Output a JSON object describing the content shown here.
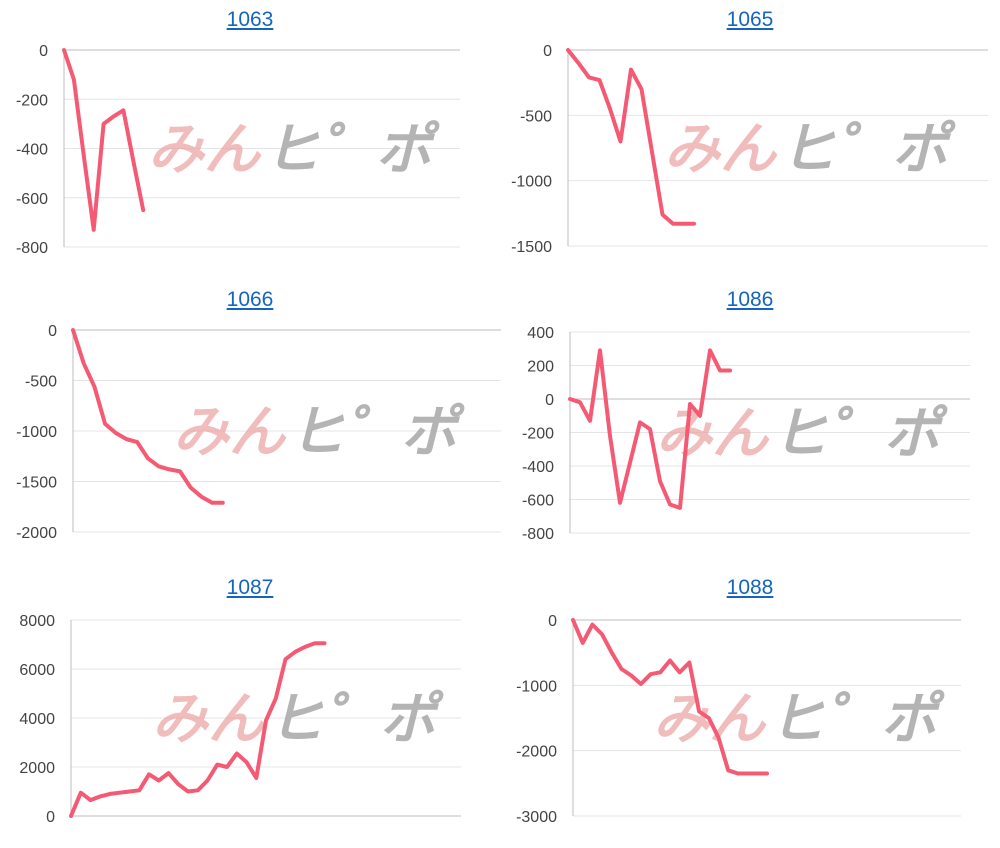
{
  "watermark": {
    "part1": "みん",
    "part2": "ヒ゜ポ"
  },
  "colors": {
    "series": "#f45a74",
    "axis": "#bdbdbd",
    "grid": "#e4e4e4",
    "title": "#1565c0"
  },
  "chart_data": [
    {
      "type": "line",
      "title": "1063",
      "ylim": [
        -800,
        0
      ],
      "yticks": [
        0,
        -200,
        -400,
        -600,
        -800
      ],
      "xlim": [
        0,
        40
      ],
      "grid": true,
      "x": [
        0,
        1,
        2,
        3,
        4,
        5,
        6,
        7,
        8
      ],
      "values": [
        0,
        -120,
        -430,
        -730,
        -300,
        -270,
        -245,
        -450,
        -650
      ]
    },
    {
      "type": "line",
      "title": "1065",
      "ylim": [
        -1500,
        0
      ],
      "yticks": [
        0,
        -500,
        -1000,
        -1500
      ],
      "xlim": [
        0,
        40
      ],
      "grid": true,
      "x": [
        0,
        1,
        2,
        3,
        4,
        5,
        6,
        7,
        8,
        9,
        10,
        11,
        12
      ],
      "values": [
        0,
        -100,
        -210,
        -230,
        -450,
        -700,
        -150,
        -300,
        -780,
        -1260,
        -1330,
        -1330,
        -1330
      ]
    },
    {
      "type": "line",
      "title": "1066",
      "ylim": [
        -2000,
        0
      ],
      "yticks": [
        0,
        -500,
        -1000,
        -1500,
        -2000
      ],
      "xlim": [
        0,
        40
      ],
      "grid": true,
      "x": [
        0,
        1,
        2,
        3,
        4,
        5,
        6,
        7,
        8,
        9,
        10,
        11,
        12,
        13,
        14
      ],
      "values": [
        0,
        -330,
        -560,
        -930,
        -1020,
        -1080,
        -1110,
        -1270,
        -1350,
        -1380,
        -1400,
        -1560,
        -1650,
        -1710,
        -1710
      ]
    },
    {
      "type": "line",
      "title": "1086",
      "ylim": [
        -800,
        400
      ],
      "yticks": [
        400,
        200,
        0,
        -200,
        -400,
        -600,
        -800
      ],
      "xlim": [
        0,
        40
      ],
      "grid": true,
      "x": [
        0,
        1,
        2,
        3,
        4,
        5,
        6,
        7,
        8,
        9,
        10,
        11,
        12,
        13,
        14,
        15,
        16
      ],
      "values": [
        0,
        -20,
        -130,
        290,
        -220,
        -620,
        -380,
        -140,
        -180,
        -490,
        -630,
        -650,
        -30,
        -100,
        290,
        170,
        170
      ]
    },
    {
      "type": "line",
      "title": "1087",
      "ylim": [
        0,
        8000
      ],
      "yticks": [
        8000,
        6000,
        4000,
        2000,
        0
      ],
      "xlim": [
        0,
        40
      ],
      "grid": true,
      "x": [
        0,
        1,
        2,
        3,
        4,
        5,
        6,
        7,
        8,
        9,
        10,
        11,
        12,
        13,
        14,
        15,
        16,
        17,
        18,
        19,
        20,
        21,
        22,
        23,
        24,
        25,
        26
      ],
      "values": [
        0,
        950,
        650,
        800,
        900,
        950,
        1000,
        1050,
        1700,
        1450,
        1750,
        1300,
        1000,
        1050,
        1450,
        2100,
        2000,
        2550,
        2200,
        1550,
        3900,
        4800,
        6400,
        6700,
        6900,
        7050,
        7050
      ]
    },
    {
      "type": "line",
      "title": "1088",
      "ylim": [
        -3000,
        0
      ],
      "yticks": [
        0,
        -1000,
        -2000,
        -3000
      ],
      "xlim": [
        0,
        40
      ],
      "grid": true,
      "x": [
        0,
        1,
        2,
        3,
        4,
        5,
        6,
        7,
        8,
        9,
        10,
        11,
        12,
        13,
        14,
        15,
        16,
        17,
        18,
        19,
        20
      ],
      "values": [
        0,
        -350,
        -70,
        -220,
        -500,
        -750,
        -850,
        -980,
        -830,
        -800,
        -620,
        -800,
        -650,
        -1400,
        -1500,
        -1800,
        -2300,
        -2350,
        -2350,
        -2350,
        -2350
      ]
    }
  ]
}
